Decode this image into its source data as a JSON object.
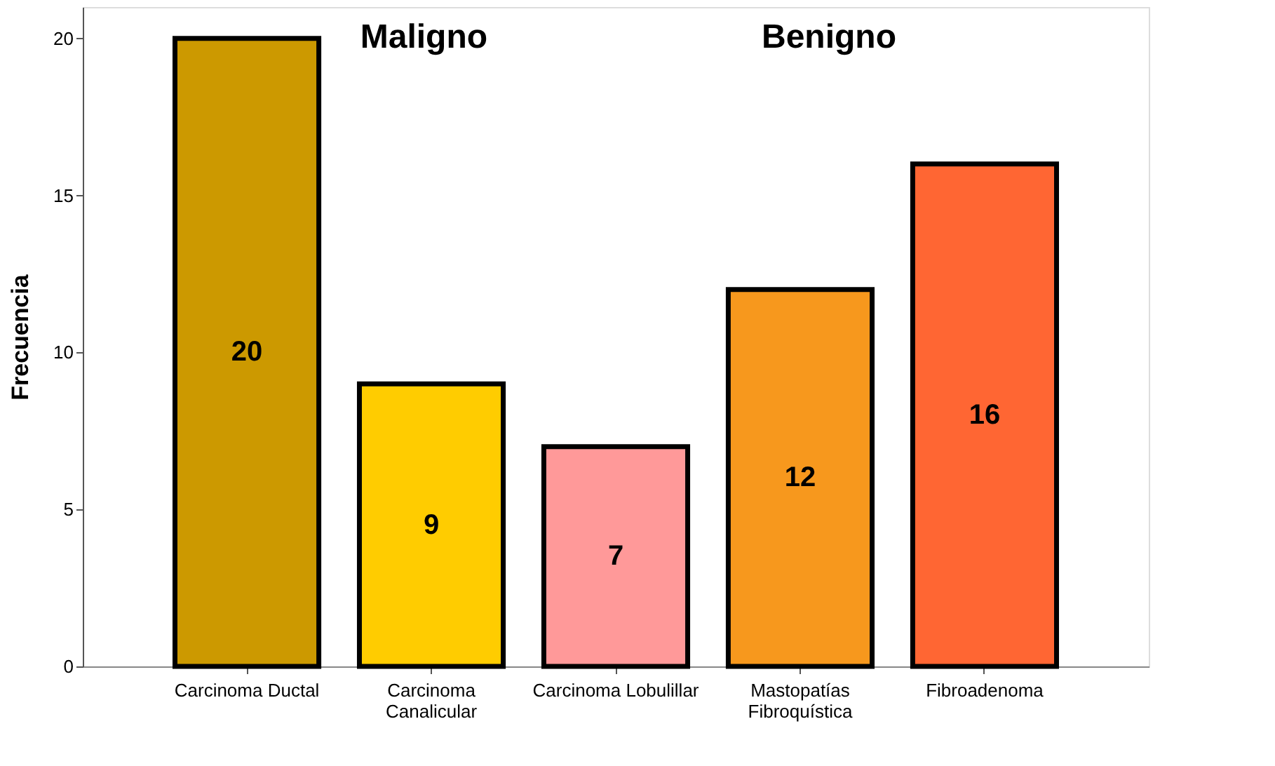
{
  "chart_data": {
    "type": "bar",
    "ylabel": "Frecuencia",
    "categories": [
      "Carcinoma Ductal",
      "Carcinoma Canalicular",
      "Carcinoma Lobulillar",
      "Mastopatías Fibroquística",
      "Fibroadenoma"
    ],
    "values": [
      20,
      9,
      7,
      12,
      16
    ],
    "colors": [
      "#cc9900",
      "#ffcc00",
      "#ff9999",
      "#f7981d",
      "#ff6633"
    ],
    "ylim": [
      0,
      21
    ],
    "yticks": [
      0,
      5,
      10,
      15,
      20
    ],
    "data_labels": true,
    "grid": false,
    "annotations": [
      "Maligno",
      "Benigno"
    ]
  }
}
